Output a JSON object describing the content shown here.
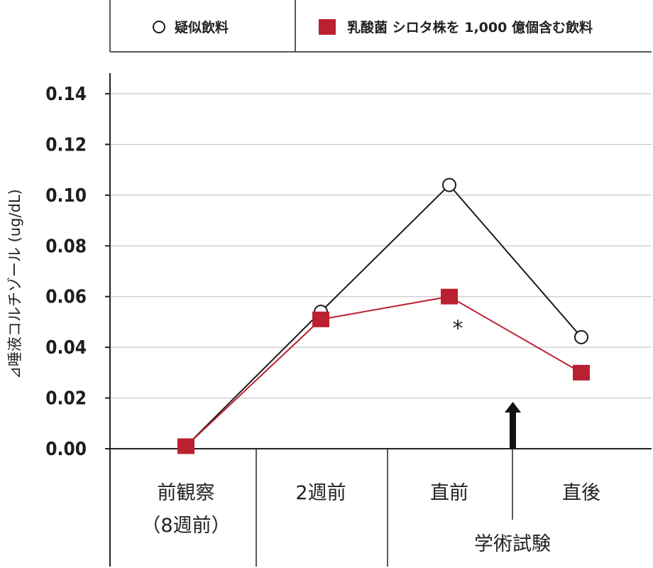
{
  "chart_data": {
    "type": "line",
    "ylabel": "⊿唾液コルチゾール (ug/dL)",
    "ylim": [
      0,
      0.14
    ],
    "yticks": [
      "0.00",
      "0.02",
      "0.04",
      "0.06",
      "0.08",
      "0.10",
      "0.12",
      "0.14"
    ],
    "grid": true,
    "legend_position": "top",
    "categories": [
      {
        "lines": [
          "前観察",
          "（8週前）"
        ]
      },
      {
        "lines": [
          "2週前"
        ]
      },
      {
        "lines": [
          "直前"
        ]
      },
      {
        "lines": [
          "直後"
        ]
      }
    ],
    "series": [
      {
        "name": "疑似飲料",
        "marker": "open-circle",
        "color": "#1a1a1a",
        "values": [
          0.001,
          0.054,
          0.104,
          0.044
        ]
      },
      {
        "name": "乳酸菌 シロタ株を 1,000 億個含む飲料",
        "marker": "filled-square",
        "color": "#bb2030",
        "values": [
          0.001,
          0.051,
          0.06,
          0.03
        ]
      }
    ],
    "annotations": [
      {
        "text": "*",
        "category_index": 2
      },
      {
        "text": "学術試験",
        "arrow_between": [
          2,
          3
        ]
      }
    ]
  }
}
